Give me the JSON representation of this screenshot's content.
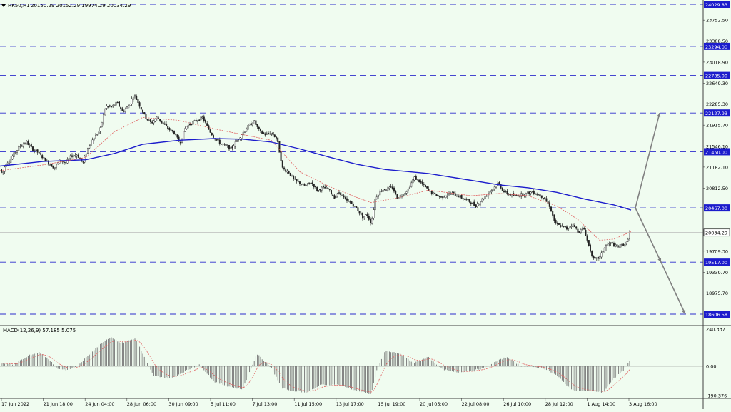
{
  "header": {
    "symbol": "HK50,H1",
    "ohlc": "20150.29 20152.29 19974.29 20034.29"
  },
  "levels": [
    {
      "value": 24029.83,
      "label": "24029.83"
    },
    {
      "value": 23294.0,
      "label": "23294.00"
    },
    {
      "value": 22785.0,
      "label": "22785.00"
    },
    {
      "value": 22127.93,
      "label": "22127.93"
    },
    {
      "value": 21450.0,
      "label": "21450.00"
    },
    {
      "value": 20467.0,
      "label": "20467.00"
    },
    {
      "value": 19517.0,
      "label": "19517.00"
    },
    {
      "value": 18606.58,
      "label": "18606.58"
    }
  ],
  "current_price": {
    "value": 20034.29,
    "label": "20034.29"
  },
  "price_ticks": [
    "23752.50",
    "23388.50",
    "23018.90",
    "22649.30",
    "22285.30",
    "21915.70",
    "21546.10",
    "21182.10",
    "20812.50",
    "19709.30",
    "19339.70",
    "18975.70"
  ],
  "macd": {
    "label": "MACD(12,26,9) 57.185 5.075",
    "ticks": [
      "240.337",
      "0.00",
      "-190.376"
    ]
  },
  "time_labels": [
    "17 Jun 2022",
    "21 Jun 18:00",
    "24 Jun 04:00",
    "28 Jun 06:00",
    "30 Jun 09:00",
    "5 Jul 11:00",
    "7 Jul 13:00",
    "11 Jul 15:00",
    "13 Jul 17:00",
    "15 Jul 19:00",
    "20 Jul 05:00",
    "22 Jul 08:00",
    "26 Jul 10:00",
    "28 Jul 12:00",
    "1 Aug 14:00",
    "3 Aug 16:00"
  ],
  "colors": {
    "background": "#f0fcf0",
    "level_line": "#2d2dcc",
    "ma_slow": "#1c1ccc",
    "ma_fast": "#e06060",
    "candles": "#222222",
    "arrow": "#808080",
    "label_box": "#1c1ccc"
  },
  "chart_data": {
    "type": "candlestick",
    "symbol": "HK50",
    "timeframe": "H1",
    "last_ohlc": {
      "open": 20150.29,
      "high": 20152.29,
      "low": 19974.29,
      "close": 20034.29
    },
    "price_path": [
      [
        0,
        21150
      ],
      [
        3,
        21050
      ],
      [
        8,
        21250
      ],
      [
        14,
        21300
      ],
      [
        20,
        21420
      ],
      [
        28,
        21550
      ],
      [
        37,
        21620
      ],
      [
        45,
        21500
      ],
      [
        52,
        21450
      ],
      [
        60,
        21350
      ],
      [
        68,
        21250
      ],
      [
        76,
        21170
      ],
      [
        84,
        21300
      ],
      [
        92,
        21250
      ],
      [
        100,
        21380
      ],
      [
        108,
        21400
      ],
      [
        116,
        21250
      ],
      [
        124,
        21550
      ],
      [
        132,
        21700
      ],
      [
        140,
        21820
      ],
      [
        148,
        22250
      ],
      [
        156,
        22230
      ],
      [
        164,
        22310
      ],
      [
        172,
        22150
      ],
      [
        180,
        22250
      ],
      [
        188,
        22450
      ],
      [
        196,
        22250
      ],
      [
        204,
        22050
      ],
      [
        212,
        21950
      ],
      [
        220,
        22050
      ],
      [
        228,
        21950
      ],
      [
        236,
        21850
      ],
      [
        244,
        21780
      ],
      [
        252,
        21600
      ],
      [
        260,
        21880
      ],
      [
        268,
        21950
      ],
      [
        276,
        22000
      ],
      [
        284,
        22050
      ],
      [
        292,
        21850
      ],
      [
        300,
        21700
      ],
      [
        308,
        21600
      ],
      [
        316,
        21550
      ],
      [
        324,
        21500
      ],
      [
        332,
        21650
      ],
      [
        340,
        21780
      ],
      [
        348,
        21900
      ],
      [
        356,
        21980
      ],
      [
        364,
        21800
      ],
      [
        372,
        21750
      ],
      [
        380,
        21780
      ],
      [
        388,
        21680
      ],
      [
        396,
        21150
      ],
      [
        404,
        21100
      ],
      [
        412,
        20950
      ],
      [
        420,
        20900
      ],
      [
        428,
        20850
      ],
      [
        436,
        20920
      ],
      [
        444,
        20780
      ],
      [
        452,
        20820
      ],
      [
        460,
        20800
      ],
      [
        468,
        20650
      ],
      [
        476,
        20740
      ],
      [
        484,
        20600
      ],
      [
        492,
        20550
      ],
      [
        500,
        20450
      ],
      [
        508,
        20300
      ],
      [
        514,
        20350
      ],
      [
        520,
        20190
      ],
      [
        526,
        20650
      ],
      [
        534,
        20780
      ],
      [
        542,
        20800
      ],
      [
        550,
        20820
      ],
      [
        556,
        20650
      ],
      [
        564,
        20700
      ],
      [
        572,
        20800
      ],
      [
        580,
        21000
      ],
      [
        586,
        20950
      ],
      [
        594,
        20850
      ],
      [
        602,
        20750
      ],
      [
        610,
        20700
      ],
      [
        618,
        20650
      ],
      [
        626,
        20700
      ],
      [
        634,
        20720
      ],
      [
        642,
        20680
      ],
      [
        650,
        20620
      ],
      [
        658,
        20580
      ],
      [
        666,
        20500
      ],
      [
        674,
        20600
      ],
      [
        682,
        20700
      ],
      [
        690,
        20800
      ],
      [
        698,
        20900
      ],
      [
        706,
        20750
      ],
      [
        714,
        20700
      ],
      [
        722,
        20680
      ],
      [
        730,
        20700
      ],
      [
        738,
        20720
      ],
      [
        746,
        20750
      ],
      [
        754,
        20700
      ],
      [
        762,
        20650
      ],
      [
        770,
        20500
      ],
      [
        778,
        20180
      ],
      [
        786,
        20150
      ],
      [
        794,
        20100
      ],
      [
        802,
        20180
      ],
      [
        810,
        20050
      ],
      [
        818,
        20100
      ],
      [
        826,
        19750
      ],
      [
        832,
        19550
      ],
      [
        840,
        19600
      ],
      [
        848,
        19800
      ],
      [
        856,
        19850
      ],
      [
        864,
        19780
      ],
      [
        872,
        19820
      ],
      [
        878,
        19850
      ],
      [
        884,
        20150
      ]
    ],
    "ma_slow_path": [
      [
        0,
        21200
      ],
      [
        60,
        21280
      ],
      [
        120,
        21310
      ],
      [
        160,
        21420
      ],
      [
        200,
        21580
      ],
      [
        250,
        21650
      ],
      [
        300,
        21680
      ],
      [
        340,
        21670
      ],
      [
        380,
        21620
      ],
      [
        420,
        21500
      ],
      [
        460,
        21360
      ],
      [
        500,
        21230
      ],
      [
        540,
        21140
      ],
      [
        600,
        21070
      ],
      [
        660,
        20950
      ],
      [
        700,
        20870
      ],
      [
        740,
        20820
      ],
      [
        780,
        20740
      ],
      [
        820,
        20620
      ],
      [
        860,
        20520
      ],
      [
        884,
        20430
      ]
    ],
    "ma_fast_path": [
      [
        0,
        21120
      ],
      [
        60,
        21220
      ],
      [
        120,
        21350
      ],
      [
        160,
        21800
      ],
      [
        200,
        22050
      ],
      [
        250,
        22000
      ],
      [
        300,
        21850
      ],
      [
        340,
        21750
      ],
      [
        380,
        21650
      ],
      [
        420,
        21100
      ],
      [
        460,
        20850
      ],
      [
        500,
        20650
      ],
      [
        520,
        20560
      ],
      [
        560,
        20650
      ],
      [
        600,
        20780
      ],
      [
        660,
        20680
      ],
      [
        700,
        20720
      ],
      [
        740,
        20680
      ],
      [
        780,
        20500
      ],
      [
        810,
        20260
      ],
      [
        840,
        19900
      ],
      [
        860,
        19920
      ],
      [
        884,
        20050
      ]
    ],
    "arrows": [
      {
        "from": [
          890,
          20467
        ],
        "to": [
          924,
          22127.93
        ]
      },
      {
        "from": [
          890,
          20467
        ],
        "to": [
          926,
          19517
        ]
      },
      {
        "from": [
          926,
          19517
        ],
        "to": [
          960,
          18606.58
        ]
      }
    ],
    "macd_histogram_envelope": [
      [
        0,
        20
      ],
      [
        20,
        10
      ],
      [
        40,
        70
      ],
      [
        55,
        90
      ],
      [
        70,
        40
      ],
      [
        80,
        -15
      ],
      [
        95,
        -25
      ],
      [
        110,
        5
      ],
      [
        130,
        100
      ],
      [
        145,
        160
      ],
      [
        155,
        190
      ],
      [
        170,
        150
      ],
      [
        190,
        180
      ],
      [
        205,
        30
      ],
      [
        215,
        -60
      ],
      [
        240,
        -80
      ],
      [
        260,
        -30
      ],
      [
        280,
        10
      ],
      [
        300,
        -100
      ],
      [
        320,
        -130
      ],
      [
        340,
        -150
      ],
      [
        360,
        80
      ],
      [
        380,
        -10
      ],
      [
        395,
        -140
      ],
      [
        410,
        -160
      ],
      [
        430,
        -170
      ],
      [
        450,
        -120
      ],
      [
        475,
        -120
      ],
      [
        500,
        -160
      ],
      [
        520,
        -180
      ],
      [
        528,
        -20
      ],
      [
        540,
        100
      ],
      [
        560,
        80
      ],
      [
        580,
        20
      ],
      [
        600,
        60
      ],
      [
        620,
        -20
      ],
      [
        640,
        -40
      ],
      [
        660,
        -30
      ],
      [
        680,
        -10
      ],
      [
        695,
        30
      ],
      [
        710,
        60
      ],
      [
        730,
        0
      ],
      [
        760,
        -10
      ],
      [
        780,
        -60
      ],
      [
        800,
        -150
      ],
      [
        815,
        -160
      ],
      [
        830,
        -160
      ],
      [
        845,
        -170
      ],
      [
        860,
        -80
      ],
      [
        875,
        -20
      ],
      [
        884,
        57
      ]
    ]
  }
}
